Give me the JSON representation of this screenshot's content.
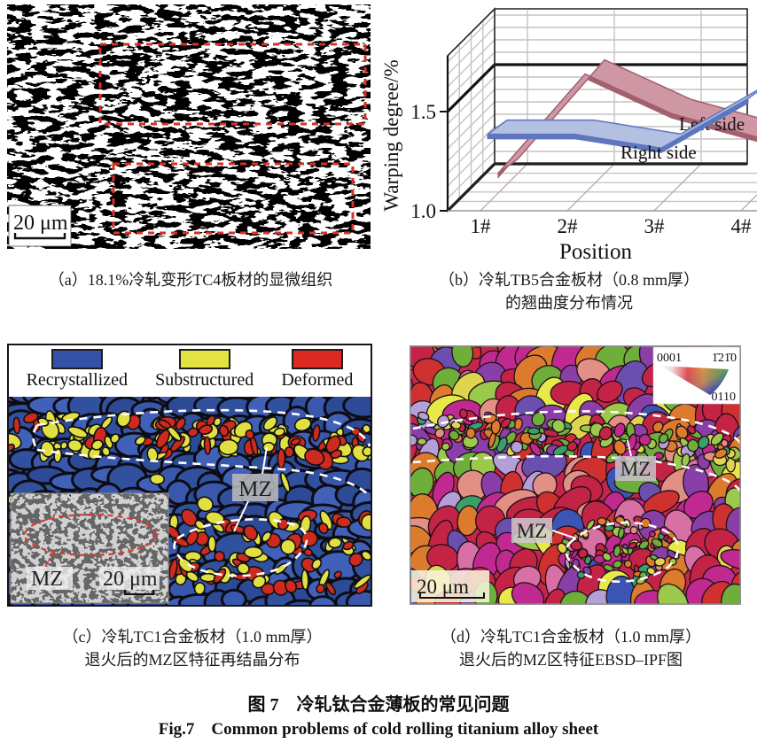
{
  "figure": {
    "title_zh": "图 7　冷轧钛合金薄板的常见问题",
    "title_en": "Fig.7　Common problems of cold rolling titanium alloy sheet"
  },
  "panels": {
    "a": {
      "caption": "（a）18.1%冷轧变形TC4板材的显微组织",
      "scale_bar": "20 μm",
      "highlight_color": "#d93025"
    },
    "b": {
      "caption_line1": "（b）冷轧TB5合金板材（0.8 mm厚）",
      "caption_line2": "的翘曲度分布情况"
    },
    "c": {
      "caption_line1": "（c）冷轧TC1合金板材（1.0 mm厚）",
      "caption_line2": "退火后的MZ区特征再结晶分布",
      "legend": [
        {
          "label": "Recrystallized",
          "color": "#3552a6"
        },
        {
          "label": "Substructured",
          "color": "#e3e243"
        },
        {
          "label": "Deformed",
          "color": "#da2a22"
        }
      ],
      "mz_label": "MZ",
      "mz_outline_color": "#ffffff",
      "inset": {
        "mz_label": "MZ",
        "scale_bar": "20 μm",
        "outline_color": "#e0392b"
      }
    },
    "d": {
      "caption_line1": "（d）冷轧TC1合金板材（1.0 mm厚）",
      "caption_line2": "退火后的MZ区特征EBSD–IPF图",
      "mz_label_upper": "MZ",
      "mz_label_lower": "MZ",
      "scale_bar": "20 μm",
      "ipf_key": {
        "corner_top_left": "0001",
        "corner_top_right": "1̄21̄0",
        "corner_bottom": "0110"
      }
    }
  },
  "chart_data": {
    "type": "line",
    "style": "3d-ribbon",
    "title": "",
    "xlabel": "Position",
    "ylabel": "Warping degree/%",
    "categories": [
      "1#",
      "2#",
      "3#",
      "4#"
    ],
    "yticks": [
      "1.0",
      "1.5"
    ],
    "ylim": [
      1.0,
      1.78
    ],
    "grid": true,
    "legend_position": "inline-right",
    "series": [
      {
        "name": "Left side",
        "values": [
          1.1,
          1.6,
          1.4,
          1.28
        ],
        "color": "#cf97a3",
        "edge": "#a2606f"
      },
      {
        "name": "Right side",
        "values": [
          1.35,
          1.35,
          1.28,
          1.53
        ],
        "color": "#b3c0e2",
        "edge": "#5d76bd"
      }
    ]
  }
}
